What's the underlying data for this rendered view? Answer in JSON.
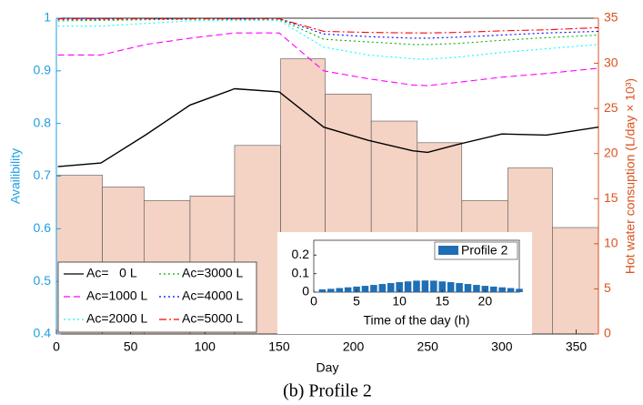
{
  "chart_data": [
    {
      "type": "line",
      "title": "(b) Profile 2",
      "xlabel": "Day",
      "ylabel": "Availibility",
      "y2label": "Hot water consuption (L/day × 10³)",
      "xlim": [
        0,
        365
      ],
      "xticks": [
        0,
        50,
        100,
        150,
        200,
        250,
        300,
        350
      ],
      "ylim": [
        0.4,
        1
      ],
      "yticks": [
        0.4,
        0.5,
        0.6,
        0.7,
        0.8,
        0.9,
        1
      ],
      "y2lim": [
        0,
        35
      ],
      "y2ticks": [
        0,
        5,
        10,
        15,
        20,
        25,
        30,
        35
      ],
      "ycolor": "#1f9fe0",
      "y2color": "#d9531e",
      "area": {
        "axis": "y2",
        "color": "#f4d3c4",
        "bins": [
          0,
          31,
          59,
          90,
          120,
          151,
          181,
          212,
          243,
          273,
          304,
          334,
          365
        ],
        "values": [
          17.6,
          16.3,
          14.8,
          15.3,
          20.9,
          30.5,
          26.6,
          23.6,
          21.2,
          14.8,
          18.4,
          11.8
        ]
      },
      "x": [
        1,
        30,
        60,
        90,
        120,
        150,
        180,
        210,
        240,
        250,
        270,
        300,
        330,
        365
      ],
      "series": [
        {
          "name": "Ac=   0 L",
          "color": "#000000",
          "style": "solid",
          "values": [
            0.718,
            0.725,
            0.778,
            0.835,
            0.866,
            0.86,
            0.793,
            0.768,
            0.748,
            0.745,
            0.76,
            0.78,
            0.778,
            0.793
          ]
        },
        {
          "name": "Ac=1000 L",
          "color": "#ff00ff",
          "style": "dashed",
          "values": [
            0.93,
            0.93,
            0.95,
            0.962,
            0.972,
            0.972,
            0.9,
            0.885,
            0.873,
            0.872,
            0.878,
            0.888,
            0.895,
            0.905
          ]
        },
        {
          "name": "Ac=2000 L",
          "color": "#00ffff",
          "style": "dotted",
          "values": [
            0.985,
            0.985,
            0.99,
            0.995,
            0.996,
            0.996,
            0.945,
            0.93,
            0.923,
            0.922,
            0.926,
            0.935,
            0.942,
            0.95
          ]
        },
        {
          "name": "Ac=3000 L",
          "color": "#00b000",
          "style": "dotted",
          "values": [
            0.995,
            0.996,
            0.997,
            0.998,
            0.998,
            0.998,
            0.96,
            0.955,
            0.95,
            0.95,
            0.952,
            0.958,
            0.963,
            0.968
          ]
        },
        {
          "name": "Ac=4000 L",
          "color": "#0000ff",
          "style": "dotted",
          "values": [
            0.998,
            0.998,
            0.999,
            0.999,
            0.999,
            0.999,
            0.97,
            0.965,
            0.962,
            0.962,
            0.964,
            0.968,
            0.972,
            0.975
          ]
        },
        {
          "name": "Ac=5000 L",
          "color": "#ff0000",
          "style": "dashdot",
          "values": [
            0.999,
            0.999,
            0.999,
            0.999,
            0.999,
            0.999,
            0.975,
            0.973,
            0.972,
            0.972,
            0.973,
            0.976,
            0.978,
            0.982
          ]
        }
      ]
    },
    {
      "type": "bar",
      "xlabel": "Time of the day (h)",
      "xlim": [
        0,
        24
      ],
      "xticks": [
        0,
        5,
        10,
        15,
        20
      ],
      "ylim": [
        0,
        0.28
      ],
      "yticks": [
        0,
        0.1,
        0.2
      ],
      "x": [
        1,
        2,
        3,
        4,
        5,
        6,
        7,
        8,
        9,
        10,
        11,
        12,
        13,
        14,
        15,
        16,
        17,
        18,
        19,
        20,
        21,
        22,
        23,
        24
      ],
      "series": [
        {
          "name": "Profile 2",
          "color": "#1f6fb4",
          "values": [
            0.015,
            0.018,
            0.022,
            0.026,
            0.03,
            0.034,
            0.039,
            0.044,
            0.049,
            0.054,
            0.058,
            0.062,
            0.063,
            0.062,
            0.058,
            0.054,
            0.049,
            0.044,
            0.039,
            0.034,
            0.03,
            0.026,
            0.022,
            0.018
          ]
        }
      ]
    }
  ]
}
